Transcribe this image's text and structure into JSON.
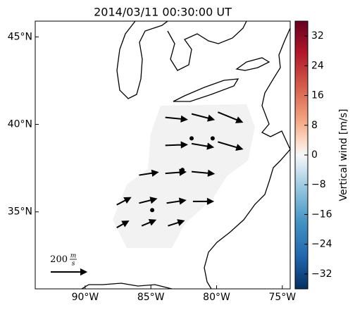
{
  "map": {
    "title": "2014/03/11 00:30:00 UT",
    "xlim": [
      -93.8,
      -74.4
    ],
    "ylim": [
      30.6,
      45.9
    ],
    "xticks": [
      {
        "value": -90,
        "label": "90°W"
      },
      {
        "value": -85,
        "label": "85°W"
      },
      {
        "value": -80,
        "label": "80°W"
      },
      {
        "value": -75,
        "label": "75°W"
      }
    ],
    "yticks": [
      {
        "value": 35,
        "label": "35°N"
      },
      {
        "value": 40,
        "label": "40°N"
      },
      {
        "value": 45,
        "label": "45°N"
      }
    ],
    "colorbar": {
      "label": "Vertical wind [m/s]",
      "clim": [
        -36,
        36
      ],
      "ticks": [
        {
          "value": -32,
          "label": "−32"
        },
        {
          "value": -24,
          "label": "−24"
        },
        {
          "value": -16,
          "label": "−16"
        },
        {
          "value": -8,
          "label": "−8"
        },
        0,
        8,
        16,
        24,
        32
      ]
    },
    "key": {
      "value": 200,
      "unit_numerator": "m",
      "unit_denominator": "s"
    },
    "vectors": [
      {
        "lon": -83.9,
        "lat": 40.4,
        "u": 120,
        "v": -12
      },
      {
        "lon": -81.9,
        "lat": 40.6,
        "u": 124,
        "v": -32
      },
      {
        "lon": -79.9,
        "lat": 40.7,
        "u": 136,
        "v": -56
      },
      {
        "lon": -83.9,
        "lat": 38.8,
        "u": 120,
        "v": 4
      },
      {
        "lon": -81.9,
        "lat": 38.9,
        "u": 120,
        "v": -20
      },
      {
        "lon": -79.9,
        "lat": 39.0,
        "u": 136,
        "v": -40
      },
      {
        "lon": -81.9,
        "lat": 39.2,
        "u": 0,
        "v": 0
      },
      {
        "lon": -80.3,
        "lat": 39.2,
        "u": 0,
        "v": 0
      },
      {
        "lon": -85.9,
        "lat": 37.1,
        "u": 104,
        "v": 16
      },
      {
        "lon": -83.9,
        "lat": 37.2,
        "u": 112,
        "v": 8
      },
      {
        "lon": -81.9,
        "lat": 37.3,
        "u": 124,
        "v": -12
      },
      {
        "lon": -82.6,
        "lat": 37.4,
        "u": 0,
        "v": 0
      },
      {
        "lon": -87.6,
        "lat": 35.4,
        "u": 76,
        "v": 40
      },
      {
        "lon": -85.9,
        "lat": 35.5,
        "u": 96,
        "v": 24
      },
      {
        "lon": -83.8,
        "lat": 35.5,
        "u": 104,
        "v": 16
      },
      {
        "lon": -81.8,
        "lat": 35.6,
        "u": 112,
        "v": 0
      },
      {
        "lon": -84.9,
        "lat": 35.1,
        "u": 0,
        "v": 0
      },
      {
        "lon": -87.6,
        "lat": 34.1,
        "u": 64,
        "v": 36
      },
      {
        "lon": -85.7,
        "lat": 34.2,
        "u": 76,
        "v": 32
      },
      {
        "lon": -83.7,
        "lat": 34.2,
        "u": 88,
        "v": 28
      }
    ]
  }
}
